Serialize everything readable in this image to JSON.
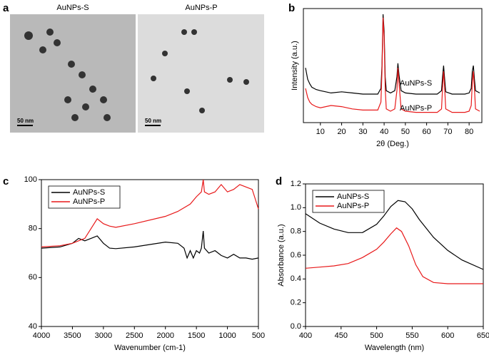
{
  "images": {
    "label": "a",
    "items": [
      {
        "title": "AuNPs-S",
        "scale": "50 nm"
      },
      {
        "title": "AuNPs-P",
        "scale": "50 nm"
      }
    ]
  },
  "chart_data": [
    {
      "type": "line",
      "label": "b",
      "xlabel": "2θ (Deg.)",
      "ylabel": "Intensity (a.u.)",
      "xlim": [
        2,
        86
      ],
      "xticks": [
        10,
        20,
        30,
        40,
        50,
        60,
        70,
        80
      ],
      "ylim": [
        0,
        100
      ],
      "legend": "annotation",
      "series": [
        {
          "name": "AuNPs-S",
          "color": "#000000",
          "x": [
            3,
            4,
            5,
            6,
            8,
            10,
            15,
            20,
            25,
            30,
            35,
            37,
            38.5,
            39,
            39.5,
            40,
            40.5,
            41,
            43,
            45,
            46,
            46.5,
            47,
            48,
            50,
            55,
            60,
            65,
            67,
            67.5,
            68,
            68.5,
            69,
            72,
            75,
            78,
            80,
            81,
            81.5,
            82,
            82.5,
            83,
            85
          ],
          "values": [
            48,
            38,
            34,
            31,
            29,
            28,
            26,
            27,
            26,
            25,
            25,
            25,
            30,
            50,
            95,
            80,
            40,
            28,
            26,
            28,
            40,
            52,
            42,
            28,
            26,
            25,
            25,
            25,
            28,
            40,
            50,
            38,
            27,
            25,
            25,
            25,
            26,
            30,
            45,
            50,
            38,
            28,
            26
          ]
        },
        {
          "name": "AuNPs-P",
          "color": "#e8191a",
          "x": [
            3,
            4,
            5,
            6,
            8,
            10,
            15,
            20,
            25,
            30,
            35,
            37,
            38.5,
            39,
            39.5,
            40,
            40.5,
            41,
            43,
            45,
            46,
            46.5,
            47,
            48,
            50,
            55,
            60,
            65,
            67,
            67.5,
            68,
            68.5,
            69,
            72,
            75,
            78,
            80,
            81,
            81.5,
            82,
            82.5,
            83,
            85
          ],
          "values": [
            30,
            22,
            18,
            16,
            14,
            13,
            15,
            14,
            12,
            11,
            11,
            11,
            18,
            45,
            92,
            75,
            30,
            12,
            10,
            12,
            28,
            48,
            35,
            12,
            10,
            9,
            9,
            9,
            12,
            30,
            45,
            30,
            12,
            9,
            9,
            9,
            10,
            15,
            35,
            45,
            30,
            12,
            10
          ]
        }
      ]
    },
    {
      "type": "line",
      "label": "c",
      "xlabel": "Wavenumber (cm-1)",
      "xlim": [
        4000,
        500
      ],
      "xticks": [
        4000,
        3500,
        3000,
        2500,
        2000,
        1500,
        1000,
        500
      ],
      "ylim": [
        40,
        100
      ],
      "yticks": [
        40,
        60,
        80,
        100
      ],
      "legend": "upper left",
      "series": [
        {
          "name": "AuNPs-S",
          "color": "#000000",
          "x": [
            4000,
            3700,
            3500,
            3400,
            3300,
            3200,
            3100,
            3000,
            2900,
            2800,
            2500,
            2000,
            1800,
            1700,
            1650,
            1600,
            1550,
            1500,
            1450,
            1420,
            1390,
            1370,
            1300,
            1200,
            1100,
            1000,
            900,
            800,
            700,
            600,
            500
          ],
          "values": [
            72,
            72.5,
            74,
            76,
            75,
            76,
            77,
            74,
            72,
            71.8,
            72.5,
            74.5,
            74,
            72,
            68,
            71,
            68,
            71,
            70,
            72,
            79,
            72,
            70,
            71,
            69,
            68,
            69.5,
            68,
            68,
            67.5,
            68
          ]
        },
        {
          "name": "AuNPs-P",
          "color": "#e8191a",
          "x": [
            4000,
            3700,
            3500,
            3400,
            3300,
            3200,
            3100,
            3000,
            2900,
            2800,
            2500,
            2000,
            1800,
            1600,
            1500,
            1420,
            1390,
            1370,
            1300,
            1200,
            1100,
            1000,
            900,
            800,
            700,
            600,
            550,
            500
          ],
          "values": [
            72.5,
            73,
            74,
            75,
            76,
            80,
            84,
            82,
            81,
            80.5,
            82,
            85,
            87,
            90,
            93,
            95,
            100,
            95,
            94,
            95,
            98,
            95,
            96,
            98,
            97,
            96,
            92,
            88
          ]
        }
      ]
    },
    {
      "type": "line",
      "label": "d",
      "xlabel": "Wavelength (nm)",
      "ylabel": "Absorbance (a.u.)",
      "xlim": [
        400,
        650
      ],
      "xticks": [
        400,
        450,
        500,
        550,
        600,
        650
      ],
      "ylim": [
        0,
        1.2
      ],
      "yticks": [
        {
          "value": 0,
          "label": "0.0"
        },
        0.2,
        0.4,
        0.6,
        0.8,
        {
          "value": 1,
          "label": "1.0"
        },
        1.2
      ],
      "legend": "upper left",
      "series": [
        {
          "name": "AuNPs-S",
          "color": "#000000",
          "x": [
            400,
            420,
            440,
            460,
            480,
            500,
            510,
            520,
            530,
            540,
            550,
            560,
            580,
            600,
            620,
            650
          ],
          "values": [
            0.95,
            0.87,
            0.82,
            0.79,
            0.79,
            0.86,
            0.93,
            1.01,
            1.06,
            1.05,
            0.99,
            0.9,
            0.75,
            0.64,
            0.56,
            0.48
          ]
        },
        {
          "name": "AuNPs-P",
          "color": "#e8191a",
          "x": [
            400,
            420,
            440,
            460,
            480,
            500,
            510,
            520,
            528,
            535,
            545,
            555,
            565,
            580,
            600,
            650
          ],
          "values": [
            0.49,
            0.5,
            0.51,
            0.53,
            0.58,
            0.65,
            0.71,
            0.78,
            0.83,
            0.8,
            0.68,
            0.52,
            0.42,
            0.37,
            0.36,
            0.36
          ]
        }
      ]
    }
  ]
}
